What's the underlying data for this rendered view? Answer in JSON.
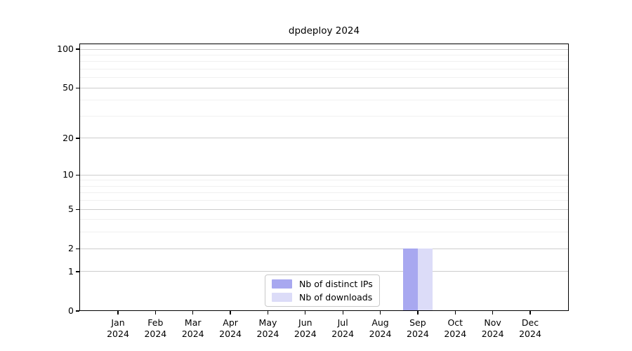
{
  "title": "dpdeploy 2024",
  "chart_data": {
    "type": "bar",
    "title": "dpdeploy 2024",
    "categories": [
      {
        "month": "Jan",
        "year": "2024"
      },
      {
        "month": "Feb",
        "year": "2024"
      },
      {
        "month": "Mar",
        "year": "2024"
      },
      {
        "month": "Apr",
        "year": "2024"
      },
      {
        "month": "May",
        "year": "2024"
      },
      {
        "month": "Jun",
        "year": "2024"
      },
      {
        "month": "Jul",
        "year": "2024"
      },
      {
        "month": "Aug",
        "year": "2024"
      },
      {
        "month": "Sep",
        "year": "2024"
      },
      {
        "month": "Oct",
        "year": "2024"
      },
      {
        "month": "Nov",
        "year": "2024"
      },
      {
        "month": "Dec",
        "year": "2024"
      }
    ],
    "series": [
      {
        "name": "Nb of distinct IPs",
        "color": "#a8a8f0",
        "values": [
          0,
          0,
          0,
          0,
          0,
          0,
          0,
          0,
          2,
          0,
          0,
          0
        ]
      },
      {
        "name": "Nb of downloads",
        "color": "#dcdcf8",
        "values": [
          0,
          0,
          0,
          0,
          0,
          0,
          0,
          0,
          2,
          0,
          0,
          0
        ]
      }
    ],
    "yscale": "log1p",
    "ylim": [
      0,
      110
    ],
    "y_major_ticks": [
      0,
      1,
      2,
      5,
      10,
      20,
      50,
      100
    ],
    "y_minor_ticks": [
      3,
      4,
      6,
      7,
      8,
      9,
      30,
      40,
      60,
      70,
      80,
      90
    ],
    "grid": "horizontal",
    "legend_position": "lower center",
    "grid_major_color": "#cdcdcd",
    "grid_minor_color": "#f0f0f0"
  }
}
